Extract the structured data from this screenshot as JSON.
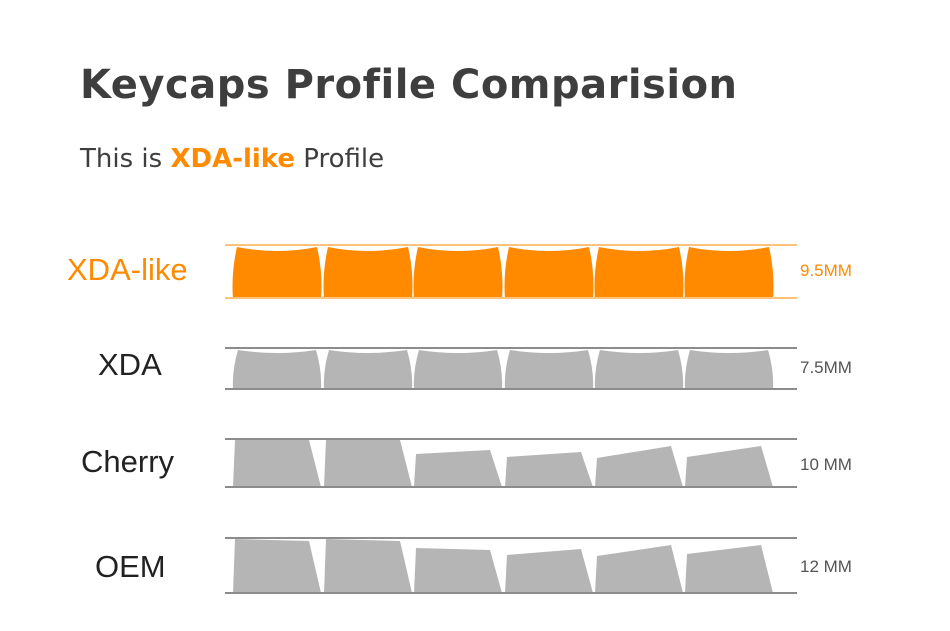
{
  "title": "Keycaps Profile Comparision",
  "subtitle": {
    "prefix": "This is",
    "highlight": "XDA-like",
    "suffix": "Profile"
  },
  "colors": {
    "accent": "#ff8a00",
    "keycap_gray": "#b5b5b5",
    "line_gray": "#8c8c8c",
    "accent_line": "#ffc27a"
  },
  "profiles": [
    {
      "name": "XDA-like",
      "height_label": "9.5MM",
      "highlighted": true
    },
    {
      "name": "XDA",
      "height_label": "7.5MM",
      "highlighted": false
    },
    {
      "name": "Cherry",
      "height_label": "10 MM",
      "highlighted": false
    },
    {
      "name": "OEM",
      "height_label": "12 MM",
      "highlighted": false
    }
  ]
}
